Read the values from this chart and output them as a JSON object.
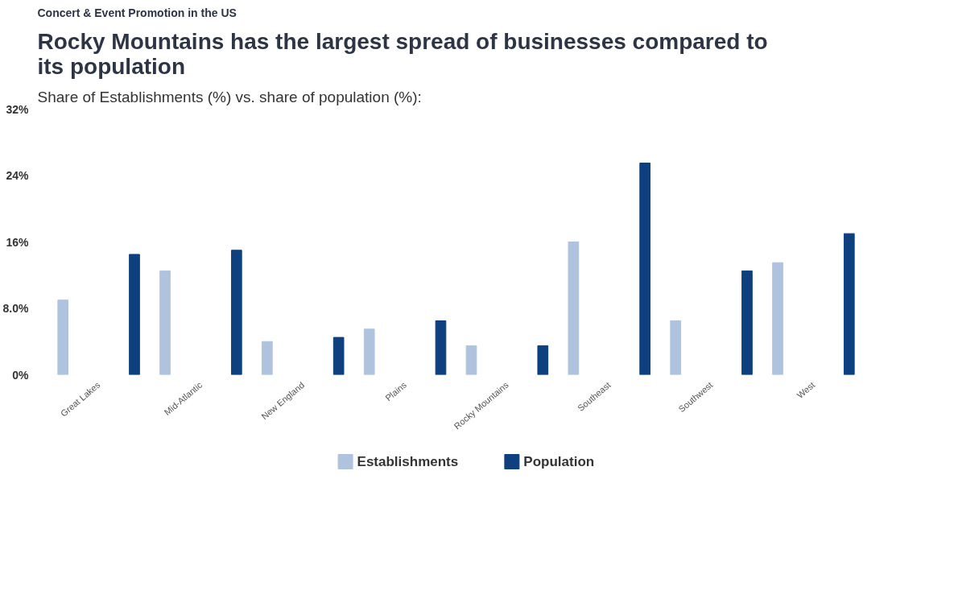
{
  "chart_data": {
    "type": "bar",
    "title": "Rocky Mountains has the largest spread of businesses compared to its population",
    "subtitle": "Share of Establishments (%) vs. share of population (%):",
    "annotations": [
      "Concert & Event Promotion in the US"
    ],
    "categories": [
      "Great Lakes",
      "Mid-Atlantic",
      "New England",
      "Plains",
      "Rocky Mountains",
      "Southeast",
      "Southwest",
      "West"
    ],
    "series": [
      {
        "name": "Establishments",
        "color": "#b0c3de",
        "values": [
          9,
          12.5,
          4,
          5.5,
          3.5,
          16,
          6.5,
          13.5
        ]
      },
      {
        "name": "Population",
        "color": "#0e3f7e",
        "values": [
          14.5,
          15,
          4.5,
          6.5,
          3.5,
          25.5,
          12.5,
          17
        ]
      }
    ],
    "ylim": [
      0,
      32
    ],
    "yticks": [
      {
        "value": 0,
        "label": "0%"
      },
      {
        "value": 8,
        "label": "8.0%"
      },
      {
        "value": 16,
        "label": "16%"
      },
      {
        "value": 24,
        "label": "24%"
      },
      {
        "value": 32,
        "label": "32%"
      }
    ],
    "grid": false,
    "legend": "bottom"
  }
}
